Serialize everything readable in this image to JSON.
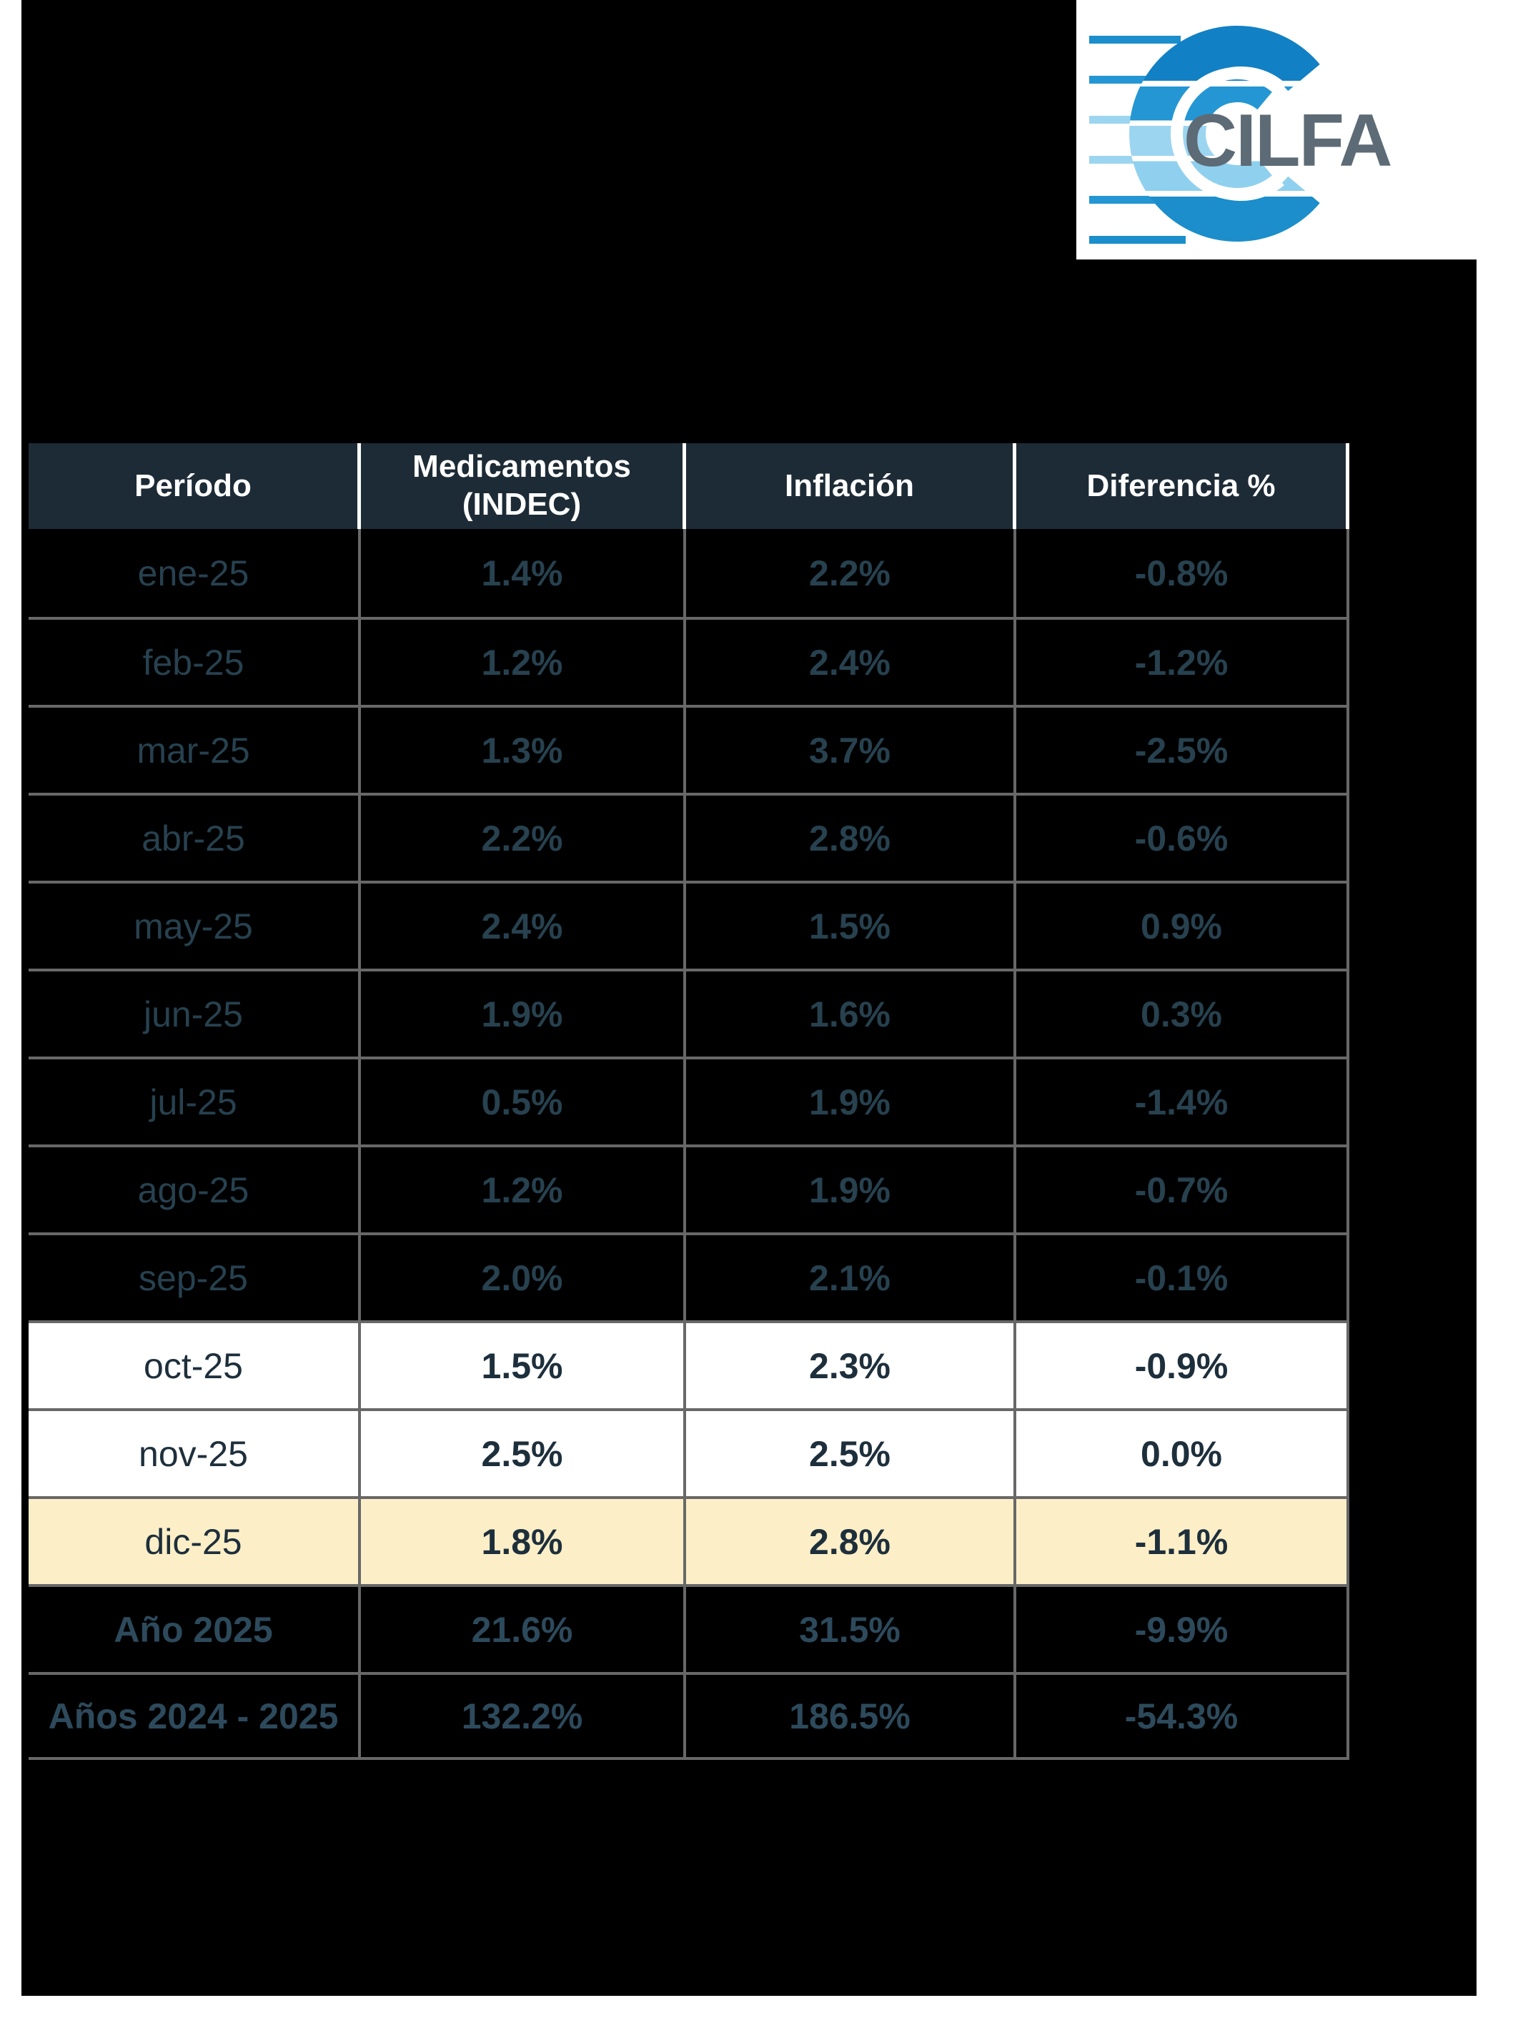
{
  "page": {
    "background": "#ffffff",
    "content_background": "#000000"
  },
  "logo": {
    "text": "CILFA",
    "text_color": "#5d6b76",
    "blues": {
      "dark": "#1280c4",
      "medium": "#2496d3",
      "light": "#9cd5f0",
      "bottom": "#1b8ecb"
    }
  },
  "table": {
    "headers": [
      "Período",
      "Medicamentos (INDEC)",
      "Inflación",
      "Diferencia %"
    ],
    "header_bg": "#1d2b36",
    "header_text_color": "#ffffff",
    "grid_color": "#686868",
    "dark_row_text_color": "#27414f",
    "summary_row_text_color": "#2d4a5c",
    "light_row_text_color": "#1e2f3c",
    "yellow_row_bg": "#fcefc7",
    "rows": [
      {
        "period": "ene-25",
        "medicamentos": "1.4%",
        "inflacion": "2.2%",
        "diferencia": "-0.8%",
        "style": "dark"
      },
      {
        "period": "feb-25",
        "medicamentos": "1.2%",
        "inflacion": "2.4%",
        "diferencia": "-1.2%",
        "style": "dark"
      },
      {
        "period": "mar-25",
        "medicamentos": "1.3%",
        "inflacion": "3.7%",
        "diferencia": "-2.5%",
        "style": "dark"
      },
      {
        "period": "abr-25",
        "medicamentos": "2.2%",
        "inflacion": "2.8%",
        "diferencia": "-0.6%",
        "style": "dark"
      },
      {
        "period": "may-25",
        "medicamentos": "2.4%",
        "inflacion": "1.5%",
        "diferencia": "0.9%",
        "style": "dark"
      },
      {
        "period": "jun-25",
        "medicamentos": "1.9%",
        "inflacion": "1.6%",
        "diferencia": "0.3%",
        "style": "dark"
      },
      {
        "period": "jul-25",
        "medicamentos": "0.5%",
        "inflacion": "1.9%",
        "diferencia": "-1.4%",
        "style": "dark"
      },
      {
        "period": "ago-25",
        "medicamentos": "1.2%",
        "inflacion": "1.9%",
        "diferencia": "-0.7%",
        "style": "dark"
      },
      {
        "period": "sep-25",
        "medicamentos": "2.0%",
        "inflacion": "2.1%",
        "diferencia": "-0.1%",
        "style": "dark"
      },
      {
        "period": "oct-25",
        "medicamentos": "1.5%",
        "inflacion": "2.3%",
        "diferencia": "-0.9%",
        "style": "white"
      },
      {
        "period": "nov-25",
        "medicamentos": "2.5%",
        "inflacion": "2.5%",
        "diferencia": "0.0%",
        "style": "white"
      },
      {
        "period": "dic-25",
        "medicamentos": "1.8%",
        "inflacion": "2.8%",
        "diferencia": "-1.1%",
        "style": "yellow"
      },
      {
        "period": "Año 2025",
        "medicamentos": "21.6%",
        "inflacion": "31.5%",
        "diferencia": "-9.9%",
        "style": "summary"
      },
      {
        "period": "Años 2024 - 2025",
        "medicamentos": "132.2%",
        "inflacion": "186.5%",
        "diferencia": "-54.3%",
        "style": "summary"
      }
    ]
  },
  "chart_data": {
    "type": "table",
    "title": "",
    "columns": [
      "Período",
      "Medicamentos (INDEC)",
      "Inflación",
      "Diferencia %"
    ],
    "categories": [
      "ene-25",
      "feb-25",
      "mar-25",
      "abr-25",
      "may-25",
      "jun-25",
      "jul-25",
      "ago-25",
      "sep-25",
      "oct-25",
      "nov-25",
      "dic-25",
      "Año 2025",
      "Años 2024 - 2025"
    ],
    "series": [
      {
        "name": "Medicamentos (INDEC)",
        "values": [
          1.4,
          1.2,
          1.3,
          2.2,
          2.4,
          1.9,
          0.5,
          1.2,
          2.0,
          1.5,
          2.5,
          1.8,
          21.6,
          132.2
        ]
      },
      {
        "name": "Inflación",
        "values": [
          2.2,
          2.4,
          3.7,
          2.8,
          1.5,
          1.6,
          1.9,
          1.9,
          2.1,
          2.3,
          2.5,
          2.8,
          31.5,
          186.5
        ]
      },
      {
        "name": "Diferencia %",
        "values": [
          -0.8,
          -1.2,
          -2.5,
          -0.6,
          0.9,
          0.3,
          -1.4,
          -0.7,
          -0.1,
          -0.9,
          0.0,
          -1.1,
          -9.9,
          -54.3
        ]
      }
    ]
  }
}
